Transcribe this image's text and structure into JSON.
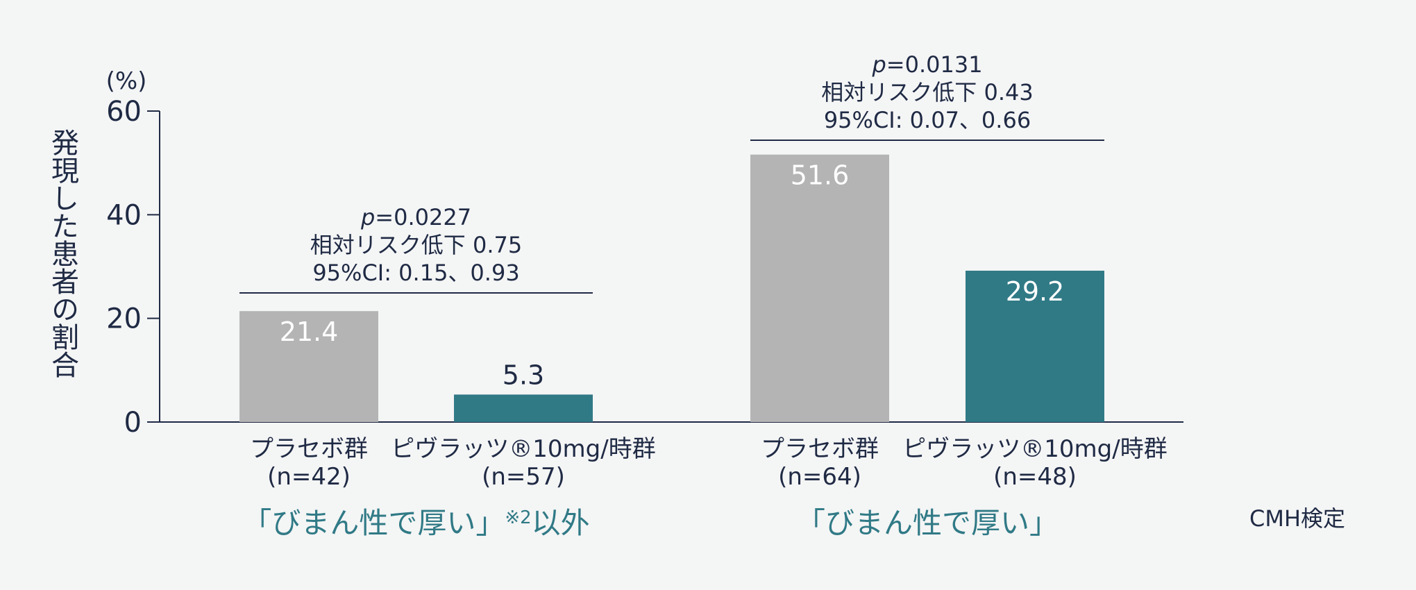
{
  "chart_data": {
    "type": "bar",
    "ylabel": "発現した患者の割合",
    "yunit": "(%)",
    "ylim": [
      0,
      60
    ],
    "yticks": [
      0,
      20,
      40,
      60
    ],
    "grid": false,
    "colors": {
      "placebo": "#b4b4b4",
      "drug": "#307a86",
      "axis": "#1f2a44",
      "group_label": "#307a86"
    },
    "groups": [
      {
        "label_main": "「びまん性で厚い」",
        "label_note": "※2",
        "label_suffix": "以外",
        "bars": [
          {
            "name_line1": "プラセボ群",
            "name_line2": "(n=42)",
            "value": 21.4,
            "value_label": "21.4",
            "series": "placebo",
            "label_inside": true
          },
          {
            "name_line1": "ピヴラッツ®10mg/時群",
            "name_line2": "(n=57)",
            "value": 5.3,
            "value_label": "5.3",
            "series": "drug",
            "label_inside": false
          }
        ],
        "stats": {
          "p_italic": "p",
          "p_value": "=0.0227",
          "rrr": "相対リスク低下 0.75",
          "ci": "95%CI: 0.15、0.93"
        }
      },
      {
        "label_main": "「びまん性で厚い」",
        "label_note": "",
        "label_suffix": "",
        "bars": [
          {
            "name_line1": "プラセボ群",
            "name_line2": "(n=64)",
            "value": 51.6,
            "value_label": "51.6",
            "series": "placebo",
            "label_inside": true
          },
          {
            "name_line1": "ピヴラッツ®10mg/時群",
            "name_line2": "(n=48)",
            "value": 29.2,
            "value_label": "29.2",
            "series": "drug",
            "label_inside": true
          }
        ],
        "stats": {
          "p_italic": "p",
          "p_value": "=0.0131",
          "rrr": "相対リスク低下 0.43",
          "ci": "95%CI: 0.07、0.66"
        }
      }
    ],
    "footnote": "CMH検定"
  }
}
